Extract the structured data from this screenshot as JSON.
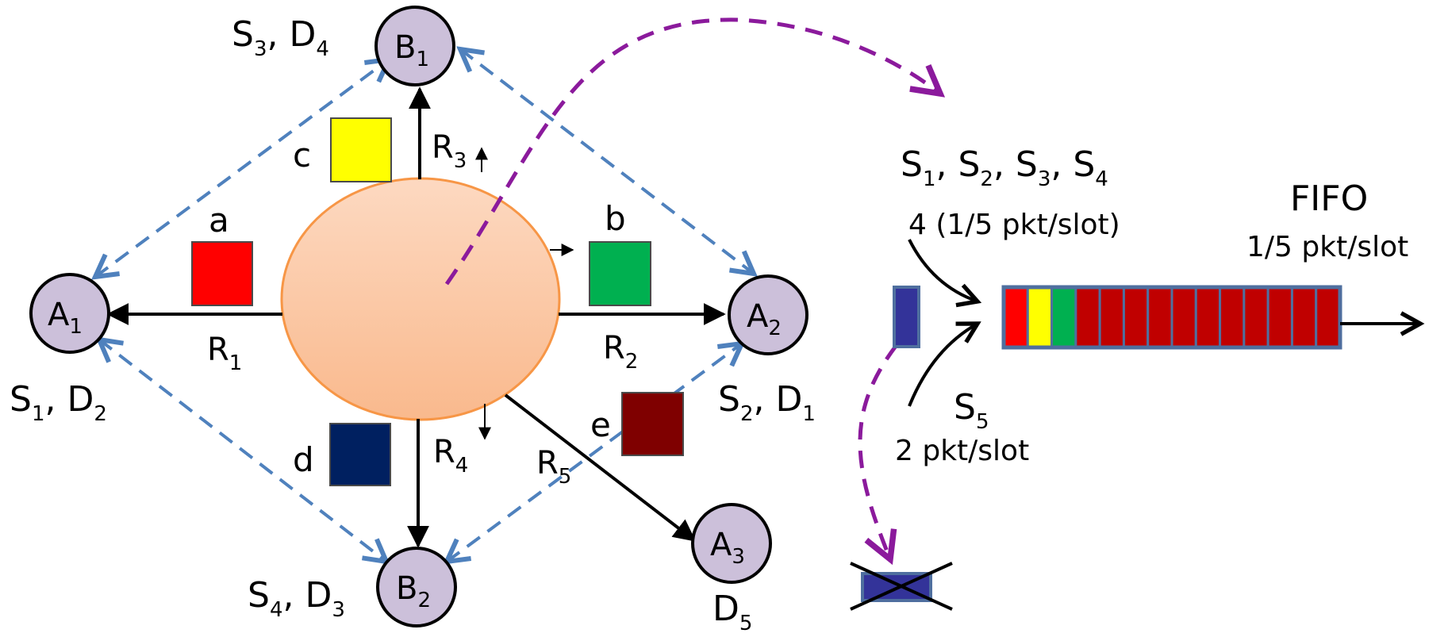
{
  "nodes": {
    "a1": {
      "name": "A",
      "sub": "1"
    },
    "a2": {
      "name": "A",
      "sub": "2"
    },
    "a3": {
      "name": "A",
      "sub": "3"
    },
    "b1": {
      "name": "B",
      "sub": "1"
    },
    "b2": {
      "name": "B",
      "sub": "2"
    }
  },
  "node_labels": {
    "a1": {
      "t1": "S",
      "s1": "1",
      "sep": ", ",
      "t2": "D",
      "s2": "2"
    },
    "a2": {
      "t1": "S",
      "s1": "2",
      "sep": ", ",
      "t2": "D",
      "s2": "1"
    },
    "b1": {
      "t1": "S",
      "s1": "3",
      "sep": ", ",
      "t2": "D",
      "s2": "4"
    },
    "b2": {
      "t1": "S",
      "s1": "4",
      "sep": ", ",
      "t2": "D",
      "s2": "3"
    },
    "a3": {
      "t1": "D",
      "s1": "5"
    }
  },
  "links": {
    "r1": {
      "t": "R",
      "s": "1"
    },
    "r2": {
      "t": "R",
      "s": "2"
    },
    "r3": {
      "t": "R",
      "s": "3"
    },
    "r4": {
      "t": "R",
      "s": "4"
    },
    "r5": {
      "t": "R",
      "s": "5"
    }
  },
  "packets": {
    "a": {
      "label": "a",
      "color": "#ff0000"
    },
    "b": {
      "label": "b",
      "color": "#00b050"
    },
    "c": {
      "label": "c",
      "color": "#ffff00"
    },
    "d": {
      "label": "d",
      "color": "#002060"
    },
    "e": {
      "label": "e",
      "color": "#7f0000"
    }
  },
  "queue": {
    "sources": {
      "p1": "S",
      "s1": "1",
      "p2": ", S",
      "s2": "2",
      "p3": ", S",
      "s3": "3",
      "p4": ", S",
      "s4": "4"
    },
    "rate_in": "4 (1/5 pkt/slot)",
    "s5": {
      "t": "S",
      "s": "5"
    },
    "s5_rate": "2 pkt/slot",
    "title": "FIFO",
    "rate_out": "1/5 pkt/slot",
    "cells": [
      "#ff0000",
      "#ffff00",
      "#00b050",
      "#c00000",
      "#c00000",
      "#c00000",
      "#c00000",
      "#c00000",
      "#c00000",
      "#c00000",
      "#c00000",
      "#c00000",
      "#c00000",
      "#c00000"
    ],
    "dropped_color": "#333399"
  },
  "colors": {
    "node_fill": "#ccc0da",
    "dashed_blue": "#4f81bd",
    "dashed_purple": "#8b1a9c",
    "router_fill": "#fbc7a4",
    "router_stroke": "#f79646",
    "queue_border": "#4f6f9f"
  }
}
